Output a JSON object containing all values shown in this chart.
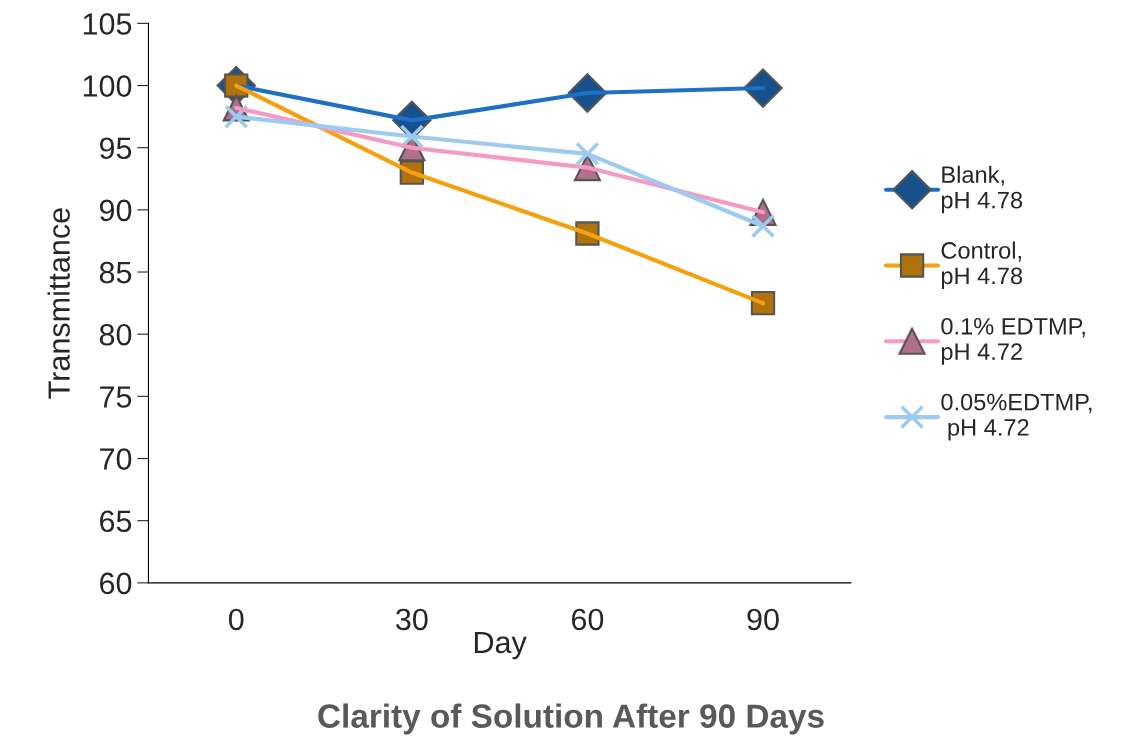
{
  "chart_data": {
    "type": "line",
    "title": "Clarity of Solution After 90 Days",
    "xlabel": "Day",
    "ylabel": "Transmittance",
    "categories": [
      "0",
      "30",
      "60",
      "90"
    ],
    "series": [
      {
        "name": "Blank,\npH 4.78",
        "color": "#1f6fc4",
        "marker": "diamond",
        "values": [
          100,
          97.2,
          99.4,
          99.8
        ]
      },
      {
        "name": "Control,\npH 4.78",
        "color": "#f5a00f",
        "marker": "square",
        "values": [
          100,
          93.0,
          88.1,
          82.5
        ]
      },
      {
        "name": "0.1% EDTMP,\npH 4.72",
        "color": "#f59ac0",
        "marker": "triangle",
        "values": [
          98.2,
          95.0,
          93.4,
          89.8
        ]
      },
      {
        "name": "0.05%EDTMP,\n pH 4.72",
        "color": "#9ccaf0",
        "marker": "cross",
        "values": [
          97.5,
          95.9,
          94.5,
          88.7
        ]
      }
    ],
    "ylim": [
      60,
      105
    ],
    "yticks": [
      60,
      65,
      70,
      75,
      80,
      85,
      90,
      95,
      100,
      105
    ],
    "grid": false,
    "legend": "right",
    "line_style": "solid"
  }
}
